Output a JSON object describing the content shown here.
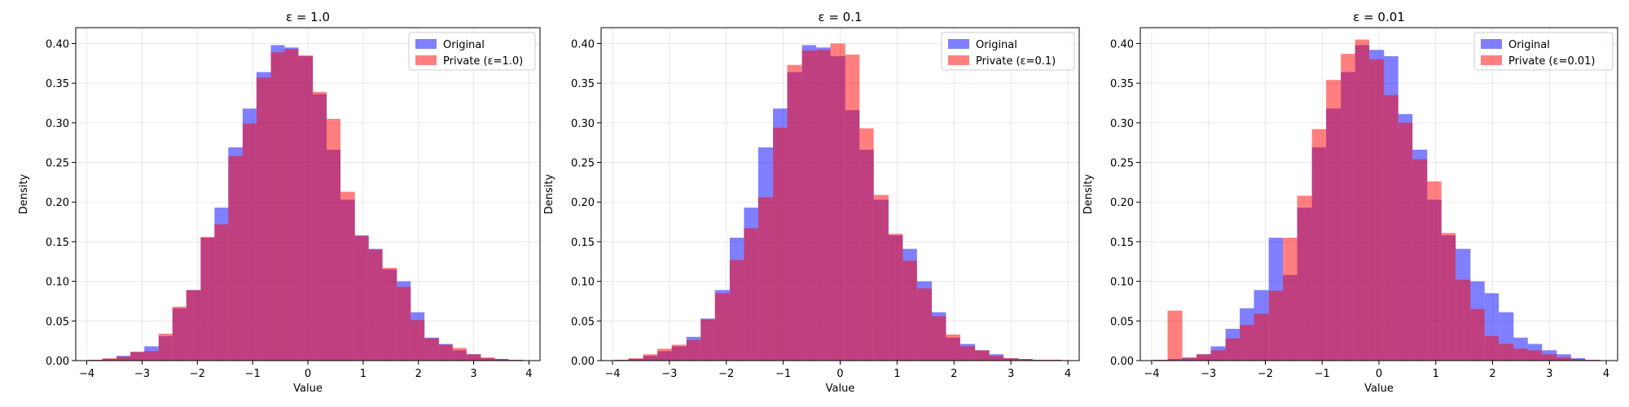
{
  "colors": {
    "original": "#0000ff",
    "private": "#ff0000",
    "grid": "#b0b0b0"
  },
  "chart_data": [
    {
      "type": "bar",
      "title": "ε = 1.0",
      "xlabel": "Value",
      "ylabel": "Density",
      "xlim": [
        -4.2,
        4.2
      ],
      "ylim": [
        0,
        0.42
      ],
      "xticks": [
        "−4",
        "−3",
        "−2",
        "−1",
        "0",
        "1",
        "2",
        "3",
        "4"
      ],
      "yticks": [
        "0.00",
        "0.05",
        "0.10",
        "0.15",
        "0.20",
        "0.25",
        "0.30",
        "0.35",
        "0.40"
      ],
      "grid": true,
      "legend_position": "top-right",
      "alpha": 0.5,
      "series": [
        {
          "name": "Original",
          "bin_edges": [
            -3.97,
            -3.72,
            -3.46,
            -3.21,
            -2.96,
            -2.7,
            -2.45,
            -2.2,
            -1.94,
            -1.69,
            -1.44,
            -1.18,
            -0.93,
            -0.67,
            -0.42,
            -0.17,
            0.09,
            0.34,
            0.59,
            0.85,
            1.1,
            1.35,
            1.61,
            1.86,
            2.11,
            2.37,
            2.62,
            2.87,
            3.13,
            3.38,
            3.63,
            3.89
          ],
          "values": [
            0.001,
            0.002,
            0.006,
            0.011,
            0.018,
            0.031,
            0.066,
            0.089,
            0.155,
            0.193,
            0.269,
            0.318,
            0.364,
            0.398,
            0.395,
            0.384,
            0.336,
            0.266,
            0.203,
            0.158,
            0.141,
            0.115,
            0.1,
            0.061,
            0.029,
            0.021,
            0.013,
            0.008,
            0.003,
            0.002,
            0.001
          ]
        },
        {
          "name": "Private (ε=1.0)",
          "bin_edges": [
            -3.97,
            -3.72,
            -3.46,
            -3.21,
            -2.96,
            -2.7,
            -2.45,
            -2.2,
            -1.94,
            -1.69,
            -1.44,
            -1.18,
            -0.93,
            -0.67,
            -0.42,
            -0.17,
            0.09,
            0.34,
            0.59,
            0.85,
            1.1,
            1.35,
            1.61,
            1.86,
            2.11,
            2.37,
            2.62,
            2.87,
            3.13,
            3.38,
            3.63,
            3.89
          ],
          "values": [
            0.001,
            0.003,
            0.005,
            0.011,
            0.012,
            0.034,
            0.068,
            0.089,
            0.156,
            0.172,
            0.258,
            0.299,
            0.357,
            0.389,
            0.393,
            0.385,
            0.339,
            0.305,
            0.213,
            0.157,
            0.14,
            0.117,
            0.093,
            0.051,
            0.028,
            0.02,
            0.016,
            0.008,
            0.004,
            0.002,
            0.001
          ]
        }
      ]
    },
    {
      "type": "bar",
      "title": "ε = 0.1",
      "xlabel": "Value",
      "ylabel": "Density",
      "xlim": [
        -4.2,
        4.2
      ],
      "ylim": [
        0,
        0.42
      ],
      "xticks": [
        "−4",
        "−3",
        "−2",
        "−1",
        "0",
        "1",
        "2",
        "3",
        "4"
      ],
      "yticks": [
        "0.00",
        "0.05",
        "0.10",
        "0.15",
        "0.20",
        "0.25",
        "0.30",
        "0.35",
        "0.40"
      ],
      "grid": true,
      "legend_position": "top-right",
      "alpha": 0.5,
      "series": [
        {
          "name": "Original",
          "bin_edges": [
            -3.97,
            -3.72,
            -3.46,
            -3.21,
            -2.96,
            -2.7,
            -2.45,
            -2.2,
            -1.94,
            -1.69,
            -1.44,
            -1.18,
            -0.93,
            -0.67,
            -0.42,
            -0.17,
            0.09,
            0.34,
            0.59,
            0.85,
            1.1,
            1.35,
            1.61,
            1.86,
            2.11,
            2.37,
            2.62,
            2.87,
            3.13,
            3.38,
            3.63,
            3.89
          ],
          "values": [
            0.001,
            0.002,
            0.006,
            0.012,
            0.018,
            0.03,
            0.053,
            0.089,
            0.155,
            0.193,
            0.269,
            0.318,
            0.364,
            0.398,
            0.395,
            0.384,
            0.316,
            0.266,
            0.203,
            0.158,
            0.141,
            0.1,
            0.061,
            0.029,
            0.021,
            0.013,
            0.008,
            0.003,
            0.002,
            0.001,
            0.001
          ]
        },
        {
          "name": "Private (ε=0.1)",
          "bin_edges": [
            -3.97,
            -3.72,
            -3.46,
            -3.21,
            -2.96,
            -2.7,
            -2.45,
            -2.2,
            -1.94,
            -1.69,
            -1.44,
            -1.18,
            -0.93,
            -0.67,
            -0.42,
            -0.17,
            0.09,
            0.34,
            0.59,
            0.85,
            1.1,
            1.35,
            1.61,
            1.86,
            2.11,
            2.37,
            2.62,
            2.87,
            3.13,
            3.38,
            3.63,
            3.89
          ],
          "values": [
            0.001,
            0.003,
            0.008,
            0.015,
            0.02,
            0.026,
            0.052,
            0.085,
            0.127,
            0.167,
            0.206,
            0.294,
            0.373,
            0.391,
            0.392,
            0.4,
            0.386,
            0.293,
            0.209,
            0.16,
            0.126,
            0.091,
            0.056,
            0.033,
            0.018,
            0.013,
            0.006,
            0.003,
            0.002,
            0.001,
            0.001
          ]
        }
      ]
    },
    {
      "type": "bar",
      "title": "ε = 0.01",
      "xlabel": "Value",
      "ylabel": "Density",
      "xlim": [
        -4.2,
        4.2
      ],
      "ylim": [
        0,
        0.42
      ],
      "xticks": [
        "−4",
        "−3",
        "−2",
        "−1",
        "0",
        "1",
        "2",
        "3",
        "4"
      ],
      "yticks": [
        "0.00",
        "0.05",
        "0.10",
        "0.15",
        "0.20",
        "0.25",
        "0.30",
        "0.35",
        "0.40"
      ],
      "grid": true,
      "legend_position": "top-right",
      "alpha": 0.5,
      "series": [
        {
          "name": "Original",
          "bin_edges": [
            -3.97,
            -3.72,
            -3.46,
            -3.21,
            -2.96,
            -2.7,
            -2.45,
            -2.2,
            -1.94,
            -1.69,
            -1.44,
            -1.18,
            -0.93,
            -0.67,
            -0.42,
            -0.17,
            0.09,
            0.34,
            0.59,
            0.85,
            1.1,
            1.35,
            1.61,
            1.86,
            2.11,
            2.37,
            2.62,
            2.87,
            3.13,
            3.38,
            3.63,
            3.89
          ],
          "values": [
            0.001,
            0.002,
            0.004,
            0.008,
            0.018,
            0.04,
            0.066,
            0.089,
            0.155,
            0.108,
            0.193,
            0.269,
            0.318,
            0.364,
            0.398,
            0.392,
            0.384,
            0.311,
            0.266,
            0.203,
            0.158,
            0.141,
            0.1,
            0.085,
            0.061,
            0.029,
            0.021,
            0.013,
            0.008,
            0.003,
            0.001
          ]
        },
        {
          "name": "Private (ε=0.01)",
          "bin_edges": [
            -3.97,
            -3.72,
            -3.46,
            -3.21,
            -2.96,
            -2.7,
            -2.45,
            -2.2,
            -1.94,
            -1.69,
            -1.44,
            -1.18,
            -0.93,
            -0.67,
            -0.42,
            -0.17,
            0.09,
            0.34,
            0.59,
            0.85,
            1.1,
            1.35,
            1.61,
            1.86,
            2.11,
            2.37,
            2.62,
            2.87,
            3.13,
            3.38,
            3.63,
            3.89
          ],
          "values": [
            0.001,
            0.063,
            0.003,
            0.008,
            0.013,
            0.028,
            0.045,
            0.059,
            0.088,
            0.155,
            0.208,
            0.292,
            0.354,
            0.387,
            0.405,
            0.38,
            0.335,
            0.3,
            0.254,
            0.226,
            0.161,
            0.102,
            0.065,
            0.031,
            0.021,
            0.015,
            0.013,
            0.008,
            0.004,
            0.002,
            0.001
          ]
        }
      ]
    }
  ]
}
